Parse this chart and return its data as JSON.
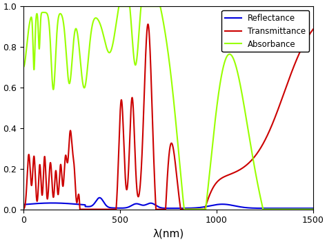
{
  "xlim": [
    0,
    1500
  ],
  "ylim": [
    0,
    1.0
  ],
  "xlabel": "λ(nm)",
  "yticks": [
    0,
    0.2,
    0.4,
    0.6,
    0.8,
    1.0
  ],
  "xticks": [
    0,
    500,
    1000,
    1500
  ],
  "legend_labels": [
    "Reflectance",
    "Transmittance",
    "Absorbance"
  ],
  "colors": {
    "reflectance": "#0000dd",
    "transmittance": "#cc0000",
    "absorbance": "#99ff00"
  },
  "linewidth": 1.5,
  "background_color": "#ffffff",
  "figsize": [
    4.74,
    3.51
  ],
  "dpi": 100
}
